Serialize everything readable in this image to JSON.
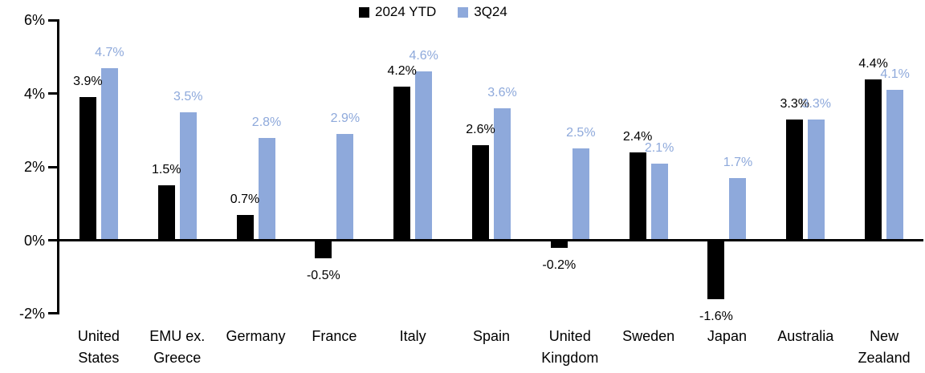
{
  "chart_data": {
    "type": "bar",
    "title": "",
    "xlabel": "",
    "ylabel": "",
    "categories": [
      "United States",
      "EMU ex. Greece",
      "Germany",
      "France",
      "Italy",
      "Spain",
      "United Kingdom",
      "Sweden",
      "Japan",
      "Australia",
      "New Zealand"
    ],
    "category_labels": [
      "United\nStates",
      "EMU ex.\nGreece",
      "Germany",
      "France",
      "Italy",
      "Spain",
      "United\nKingdom",
      "Sweden",
      "Japan",
      "Australia",
      "New\nZealand"
    ],
    "series": [
      {
        "name": "2024 YTD",
        "color": "#000000",
        "values": [
          3.9,
          1.5,
          0.7,
          -0.5,
          4.2,
          2.6,
          -0.2,
          2.4,
          -1.6,
          3.3,
          4.4
        ],
        "labels": [
          "3.9%",
          "1.5%",
          "0.7%",
          "-0.5%",
          "4.2%",
          "2.6%",
          "-0.2%",
          "2.4%",
          "-1.6%",
          "3.3%",
          "4.4%"
        ]
      },
      {
        "name": "3Q24",
        "color": "#8EA9DB",
        "values": [
          4.7,
          3.5,
          2.8,
          2.9,
          4.6,
          3.6,
          2.5,
          2.1,
          1.7,
          3.3,
          4.1
        ],
        "labels": [
          "4.7%",
          "3.5%",
          "2.8%",
          "2.9%",
          "4.6%",
          "3.6%",
          "2.5%",
          "2.1%",
          "1.7%",
          "3.3%",
          "4.1%"
        ]
      }
    ],
    "ylim": [
      -2,
      6
    ],
    "yticks": [
      6,
      4,
      2,
      0,
      -2
    ],
    "ytick_labels": [
      "6%",
      "4%",
      "2%",
      "0%",
      "-2%"
    ],
    "grid": false,
    "legend_position": "top-center",
    "axis_color": "#000000",
    "background_color": "#FFFFFF"
  }
}
